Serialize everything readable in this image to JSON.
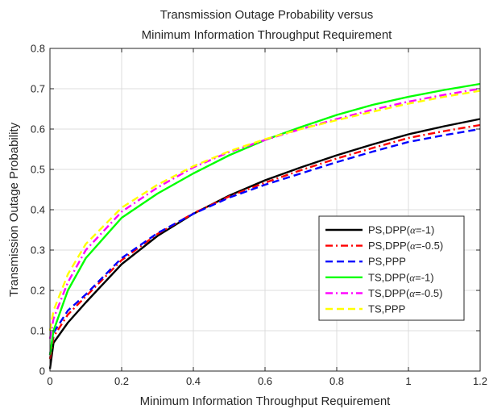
{
  "chart_data": {
    "type": "line",
    "title_lines": [
      "Transmission Outage Probability versus",
      "Minimum Information Throughput Requirement"
    ],
    "xlabel": "Minimum Information Throughput Requirement",
    "ylabel": "Transmission Outage Probability",
    "xlim": [
      0,
      1.2
    ],
    "ylim": [
      0,
      0.8
    ],
    "xticks": [
      0,
      0.2,
      0.4,
      0.6,
      0.8,
      1,
      1.2
    ],
    "xtick_labels": [
      "0",
      "0.2",
      "0.4",
      "0.6",
      "0.8",
      "1",
      "1.2"
    ],
    "yticks": [
      0,
      0.1,
      0.2,
      0.3,
      0.4,
      0.5,
      0.6,
      0.7,
      0.8
    ],
    "ytick_labels": [
      "0",
      "0.1",
      "0.2",
      "0.3",
      "0.4",
      "0.5",
      "0.6",
      "0.7",
      "0.8"
    ],
    "grid": true,
    "legend_position": "lower-right",
    "x": [
      0,
      0.01,
      0.05,
      0.1,
      0.2,
      0.3,
      0.4,
      0.5,
      0.6,
      0.7,
      0.8,
      0.9,
      1.0,
      1.1,
      1.2
    ],
    "series": [
      {
        "name": "PS,DPP(α=-1)",
        "legend_main": "PS,DPP(",
        "legend_sym": "α",
        "legend_rest": "=-1)",
        "color": "#000000",
        "dash": "solid",
        "values": [
          0.005,
          0.07,
          0.12,
          0.17,
          0.265,
          0.335,
          0.39,
          0.435,
          0.473,
          0.505,
          0.535,
          0.562,
          0.587,
          0.607,
          0.625
        ]
      },
      {
        "name": "PS,DPP(α=-0.5)",
        "legend_main": "PS,DPP(",
        "legend_sym": "α",
        "legend_rest": "=-0.5)",
        "color": "#ff0000",
        "dash": "dashdot",
        "values": [
          0.03,
          0.085,
          0.14,
          0.185,
          0.275,
          0.34,
          0.391,
          0.433,
          0.467,
          0.498,
          0.527,
          0.553,
          0.578,
          0.595,
          0.61
        ]
      },
      {
        "name": "PS,PPP",
        "legend_main": "PS,PPP",
        "legend_sym": "",
        "legend_rest": "",
        "color": "#0000ff",
        "dash": "dashed",
        "values": [
          0.04,
          0.095,
          0.15,
          0.19,
          0.28,
          0.342,
          0.39,
          0.43,
          0.462,
          0.49,
          0.518,
          0.544,
          0.568,
          0.585,
          0.6
        ]
      },
      {
        "name": "TS,DPP(α=-1)",
        "legend_main": "TS,DPP(",
        "legend_sym": "α",
        "legend_rest": "=-1)",
        "color": "#00ff00",
        "dash": "solid",
        "values": [
          0.04,
          0.1,
          0.2,
          0.28,
          0.38,
          0.44,
          0.49,
          0.535,
          0.573,
          0.605,
          0.635,
          0.66,
          0.68,
          0.697,
          0.712
        ]
      },
      {
        "name": "TS,DPP(α=-0.5)",
        "legend_main": "TS,DPP(",
        "legend_sym": "α",
        "legend_rest": "=-0.5)",
        "color": "#ff00ff",
        "dash": "dashdot",
        "values": [
          0.08,
          0.13,
          0.22,
          0.3,
          0.395,
          0.455,
          0.505,
          0.543,
          0.573,
          0.6,
          0.625,
          0.648,
          0.668,
          0.685,
          0.7
        ]
      },
      {
        "name": "TS,PPP",
        "legend_main": "TS,PPP",
        "legend_sym": "",
        "legend_rest": "",
        "color": "#ffff00",
        "dash": "dashed",
        "values": [
          0.1,
          0.15,
          0.24,
          0.315,
          0.405,
          0.462,
          0.508,
          0.545,
          0.575,
          0.6,
          0.622,
          0.643,
          0.663,
          0.68,
          0.695
        ]
      }
    ]
  }
}
